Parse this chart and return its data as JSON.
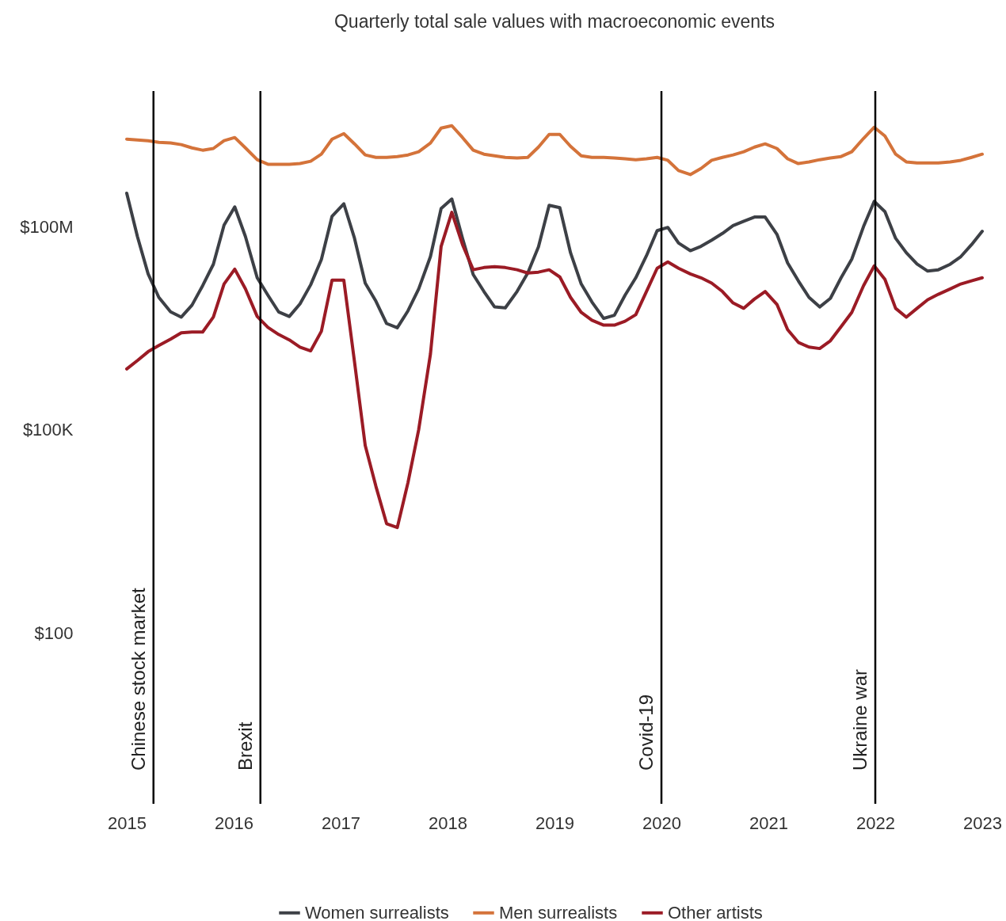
{
  "chart_data": {
    "type": "line",
    "title": "Quarterly total sale values with macroeconomic events",
    "x": [
      2015,
      2015.1,
      2015.2,
      2015.3,
      2015.41,
      2015.51,
      2015.61,
      2015.71,
      2015.81,
      2015.91,
      2016.01,
      2016.11,
      2016.22,
      2016.32,
      2016.42,
      2016.52,
      2016.62,
      2016.72,
      2016.82,
      2016.92,
      2017.03,
      2017.13,
      2017.23,
      2017.33,
      2017.43,
      2017.53,
      2017.63,
      2017.73,
      2017.84,
      2017.94,
      2018.04,
      2018.14,
      2018.24,
      2018.34,
      2018.44,
      2018.54,
      2018.65,
      2018.75,
      2018.85,
      2018.95,
      2019.05,
      2019.15,
      2019.25,
      2019.35,
      2019.46,
      2019.56,
      2019.66,
      2019.76,
      2019.86,
      2019.96,
      2020.06,
      2020.16,
      2020.27,
      2020.37,
      2020.47,
      2020.57,
      2020.67,
      2020.77,
      2020.87,
      2020.97,
      2021.08,
      2021.18,
      2021.28,
      2021.38,
      2021.48,
      2021.58,
      2021.68,
      2021.78,
      2021.89,
      2021.99,
      2022.09,
      2022.19,
      2022.29,
      2022.39,
      2022.49,
      2022.59,
      2022.7,
      2022.8,
      2022.9,
      2023
    ],
    "series": [
      {
        "name": "Women surrealists",
        "color": "#3d4046",
        "values": [
          310000000,
          71000000,
          20000000,
          9000000,
          5500000,
          4600000,
          6900000,
          13400000,
          27700000,
          105000000,
          195000000,
          71000000,
          17500000,
          9700000,
          5500000,
          4700000,
          7200000,
          13800000,
          32500000,
          142000000,
          217000000,
          67000000,
          14600000,
          7900000,
          3700000,
          3200000,
          5700000,
          12000000,
          36000000,
          185000000,
          255000000,
          67000000,
          19500000,
          11000000,
          6500000,
          6300000,
          11000000,
          20600000,
          50000000,
          206000000,
          190000000,
          41000000,
          14200000,
          7700000,
          4400000,
          4900000,
          9700000,
          17500000,
          37000000,
          87000000,
          97000000,
          57000000,
          44000000,
          51000000,
          63000000,
          79000000,
          103000000,
          120000000,
          138000000,
          138000000,
          77000000,
          29000000,
          15800000,
          9000000,
          6500000,
          8700000,
          17500000,
          33000000,
          100000000,
          235000000,
          166000000,
          67000000,
          41000000,
          28000000,
          22000000,
          23000000,
          27700000,
          36000000,
          54000000,
          85000000
        ]
      },
      {
        "name": "Men surrealists",
        "color": "#d4733a",
        "values": [
          1950000000,
          1900000000,
          1850000000,
          1750000000,
          1710000000,
          1620000000,
          1450000000,
          1340000000,
          1420000000,
          1850000000,
          2060000000,
          1450000000,
          972000000,
          830000000,
          830000000,
          830000000,
          850000000,
          920000000,
          1170000000,
          1950000000,
          2350000000,
          1660000000,
          1140000000,
          1050000000,
          1050000000,
          1080000000,
          1140000000,
          1270000000,
          1710000000,
          2840000000,
          3080000000,
          2060000000,
          1340000000,
          1170000000,
          1110000000,
          1050000000,
          1030000000,
          1050000000,
          1490000000,
          2290000000,
          2290000000,
          1530000000,
          1110000000,
          1050000000,
          1050000000,
          1030000000,
          1000000000,
          970000000,
          1000000000,
          1050000000,
          950000000,
          670000000,
          585000000,
          720000000,
          950000000,
          1050000000,
          1140000000,
          1270000000,
          1490000000,
          1660000000,
          1420000000,
          1000000000,
          850000000,
          900000000,
          970000000,
          1030000000,
          1080000000,
          1270000000,
          2000000000,
          2920000000,
          2170000000,
          1170000000,
          900000000,
          870000000,
          870000000,
          870000000,
          900000000,
          950000000,
          1050000000,
          1170000000
        ]
      },
      {
        "name": "Other artists",
        "color": "#9b1b25",
        "values": [
          790000,
          1050000,
          1420000,
          1750000,
          2170000,
          2700000,
          2770000,
          2770000,
          4600000,
          14200000,
          23500000,
          12000000,
          4700000,
          3250000,
          2550000,
          2120000,
          1660000,
          1460000,
          2840000,
          16200000,
          16200000,
          1000000,
          58500,
          14600,
          4100,
          3600,
          16600,
          100000,
          1310000,
          51000000,
          162000000,
          54000000,
          23000000,
          24800000,
          25500000,
          24800000,
          23000000,
          20600000,
          21200000,
          23000000,
          18000000,
          9000000,
          5400000,
          4130000,
          3500000,
          3500000,
          4000000,
          5000000,
          11000000,
          24200000,
          30000000,
          24200000,
          20000000,
          17500000,
          14600000,
          11000000,
          7450000,
          6200000,
          8500000,
          11000000,
          7100000,
          3000000,
          1950000,
          1660000,
          1580000,
          2060000,
          3330000,
          5400000,
          13400000,
          26200000,
          16600000,
          6200000,
          4600000,
          6200000,
          8300000,
          10000000,
          12000000,
          14200000,
          15800000,
          17500000
        ]
      }
    ],
    "log": true,
    "grid": false,
    "legend": "bottom",
    "xlim": [
      2015,
      2023
    ],
    "xticks": [
      2015,
      2016,
      2017,
      2018,
      2019,
      2020,
      2021,
      2022,
      2023
    ],
    "ylim": [
      0.3,
      10000000000
    ],
    "yticks": [
      {
        "value": 100,
        "label": "$100"
      },
      {
        "value": 100000,
        "label": "$100K"
      },
      {
        "value": 100000000,
        "label": "$100M"
      }
    ],
    "ref_lines": [
      {
        "axis": "x",
        "value": 2015.25,
        "label": "Chinese stock market",
        "color": "#000000"
      },
      {
        "axis": "x",
        "value": 2016.25,
        "label": "Brexit",
        "color": "#000000"
      },
      {
        "axis": "x",
        "value": 2020,
        "label": "Covid-19",
        "color": "#000000"
      },
      {
        "axis": "x",
        "value": 2022,
        "label": "Ukraine war",
        "color": "#000000"
      }
    ]
  }
}
